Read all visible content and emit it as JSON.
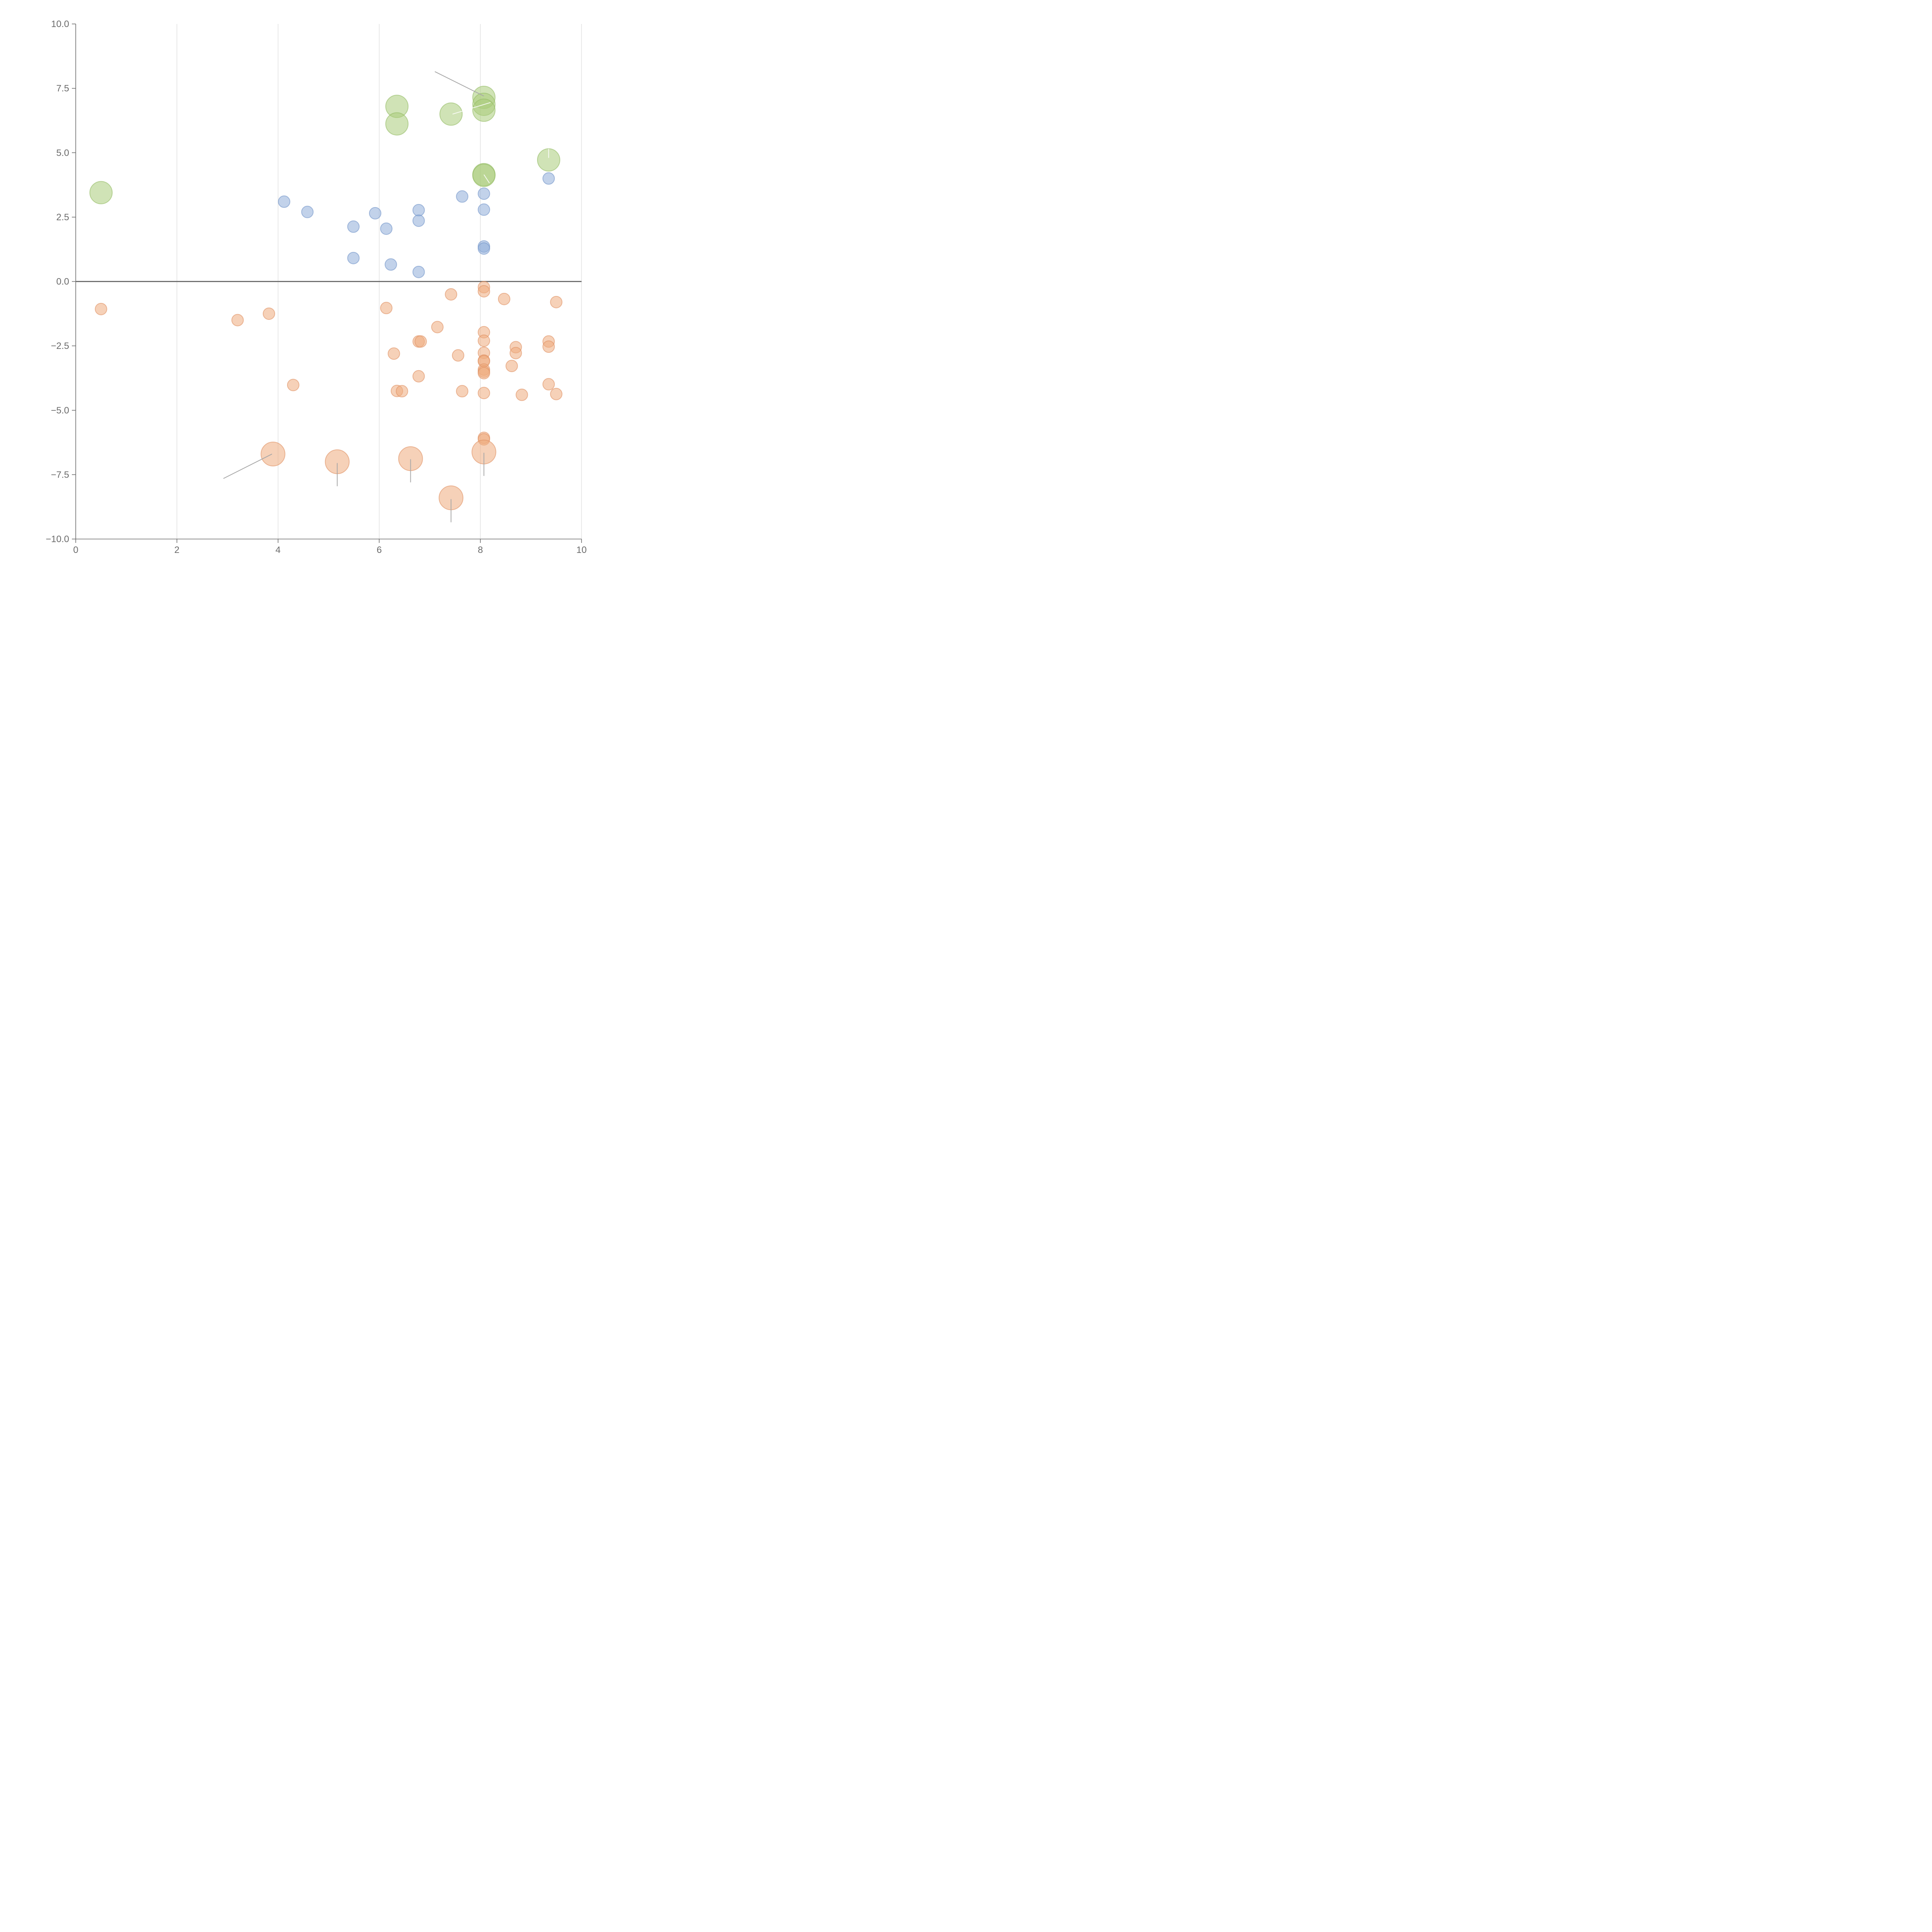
{
  "chart_data": {
    "type": "scatter",
    "title": "",
    "xlabel": "",
    "ylabel": "",
    "xlim": [
      0,
      10
    ],
    "ylim": [
      -10,
      10
    ],
    "xticks": [
      0,
      2,
      4,
      6,
      8,
      10
    ],
    "xtick_labels": [
      "0",
      "2",
      "4",
      "6",
      "8",
      "10"
    ],
    "yticks": [
      -10,
      -7.5,
      -5,
      -2.5,
      0,
      2.5,
      5,
      7.5,
      10
    ],
    "ytick_labels": [
      "−10.0",
      "−7.5",
      "−5.0",
      "−2.5",
      "0.0",
      "2.5",
      "5.0",
      "7.5",
      "10.0"
    ],
    "grid": "vertical",
    "zero_line": true,
    "series": [
      {
        "name": "green",
        "color": "#a9cc7a",
        "stroke": "#93bb62",
        "size": "large",
        "points": [
          [
            0.5,
            3.45
          ],
          [
            6.35,
            6.8
          ],
          [
            6.35,
            6.12
          ],
          [
            7.42,
            6.5
          ],
          [
            8.07,
            7.15
          ],
          [
            8.07,
            6.88
          ],
          [
            8.07,
            6.65
          ],
          [
            8.07,
            4.15
          ],
          [
            8.07,
            4.12
          ],
          [
            9.35,
            4.72
          ]
        ]
      },
      {
        "name": "blue",
        "color": "#8fadd9",
        "stroke": "#6f92c8",
        "size": "small",
        "points": [
          [
            4.12,
            3.1
          ],
          [
            4.58,
            2.7
          ],
          [
            5.49,
            2.13
          ],
          [
            5.49,
            0.91
          ],
          [
            5.92,
            2.65
          ],
          [
            6.14,
            2.05
          ],
          [
            6.23,
            0.66
          ],
          [
            6.78,
            2.77
          ],
          [
            6.78,
            2.36
          ],
          [
            6.78,
            0.37
          ],
          [
            7.64,
            3.3
          ],
          [
            8.07,
            3.41
          ],
          [
            8.07,
            2.79
          ],
          [
            8.07,
            1.36
          ],
          [
            8.07,
            1.28
          ],
          [
            9.35,
            4.0
          ]
        ]
      },
      {
        "name": "orange",
        "color": "#eeac7e",
        "stroke": "#e09060",
        "size": "mixed",
        "points": [
          [
            0.5,
            -1.07,
            "s"
          ],
          [
            3.2,
            -1.5,
            "s"
          ],
          [
            3.82,
            -1.25,
            "s"
          ],
          [
            4.3,
            -4.02,
            "s"
          ],
          [
            6.14,
            -1.03,
            "s"
          ],
          [
            6.29,
            -2.8,
            "s"
          ],
          [
            6.35,
            -4.25,
            "s"
          ],
          [
            6.45,
            -4.26,
            "s"
          ],
          [
            6.78,
            -3.68,
            "s"
          ],
          [
            6.78,
            -2.33,
            "s"
          ],
          [
            6.82,
            -2.33,
            "s"
          ],
          [
            7.15,
            -1.77,
            "s"
          ],
          [
            7.42,
            -0.5,
            "s"
          ],
          [
            7.56,
            -2.87,
            "s"
          ],
          [
            7.64,
            -4.26,
            "s"
          ],
          [
            8.07,
            -0.22,
            "s"
          ],
          [
            8.07,
            -0.38,
            "s"
          ],
          [
            8.07,
            -1.97,
            "s"
          ],
          [
            8.07,
            -2.3,
            "s"
          ],
          [
            8.07,
            -2.77,
            "s"
          ],
          [
            8.07,
            -3.07,
            "s"
          ],
          [
            8.07,
            -3.1,
            "s"
          ],
          [
            8.07,
            -3.42,
            "s"
          ],
          [
            8.07,
            -3.5,
            "s"
          ],
          [
            8.07,
            -3.56,
            "s"
          ],
          [
            8.07,
            -4.33,
            "s"
          ],
          [
            8.07,
            -6.07,
            "s"
          ],
          [
            8.07,
            -6.13,
            "s"
          ],
          [
            8.47,
            -0.68,
            "s"
          ],
          [
            8.62,
            -3.28,
            "s"
          ],
          [
            8.7,
            -2.55,
            "s"
          ],
          [
            8.7,
            -2.78,
            "s"
          ],
          [
            8.82,
            -4.4,
            "s"
          ],
          [
            9.35,
            -2.33,
            "s"
          ],
          [
            9.35,
            -2.53,
            "s"
          ],
          [
            9.35,
            -3.99,
            "s"
          ],
          [
            9.5,
            -0.8,
            "s"
          ],
          [
            9.5,
            -4.37,
            "s"
          ],
          [
            3.9,
            -6.7,
            "l"
          ],
          [
            5.17,
            -7.0,
            "l"
          ],
          [
            6.62,
            -6.88,
            "l"
          ],
          [
            7.42,
            -8.4,
            "l"
          ],
          [
            8.07,
            -6.62,
            "l"
          ]
        ]
      }
    ],
    "annotation_leaders": [
      {
        "from": [
          7.1,
          8.15
        ],
        "to": [
          8.07,
          7.2
        ],
        "tone": "grey"
      },
      {
        "from": [
          2.92,
          -7.65
        ],
        "to": [
          3.88,
          -6.7
        ],
        "tone": "grey"
      },
      {
        "from": [
          5.17,
          -7.05
        ],
        "to": [
          5.17,
          -7.95
        ],
        "tone": "grey"
      },
      {
        "from": [
          6.62,
          -6.9
        ],
        "to": [
          6.62,
          -7.8
        ],
        "tone": "grey"
      },
      {
        "from": [
          7.42,
          -8.45
        ],
        "to": [
          7.42,
          -9.35
        ],
        "tone": "grey"
      },
      {
        "from": [
          8.07,
          -6.65
        ],
        "to": [
          8.07,
          -7.55
        ],
        "tone": "grey"
      },
      {
        "from": [
          7.45,
          6.5
        ],
        "to": [
          8.2,
          6.95
        ],
        "tone": "light"
      },
      {
        "from": [
          9.35,
          4.8
        ],
        "to": [
          9.35,
          5.15
        ],
        "tone": "light"
      },
      {
        "from": [
          8.07,
          4.15
        ],
        "to": [
          8.18,
          3.82
        ],
        "tone": "light"
      }
    ]
  }
}
